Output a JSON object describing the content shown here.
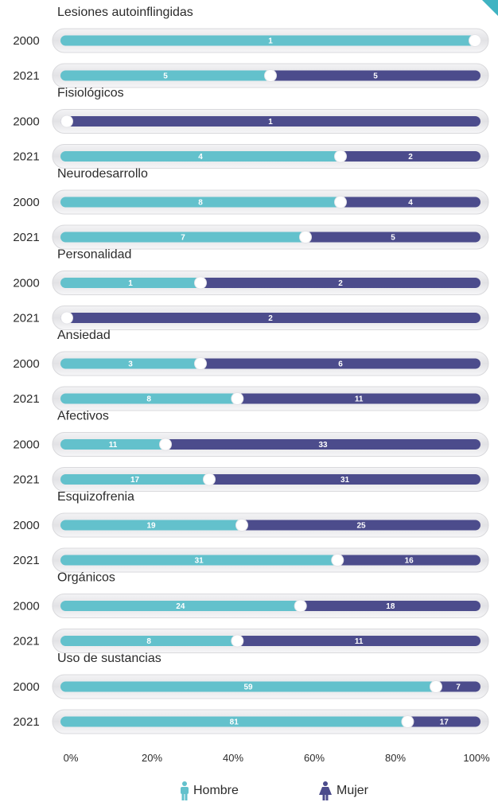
{
  "colors": {
    "hombre": "#63c1cc",
    "mujer": "#4c4c8c",
    "track": "#e6e6e8",
    "knob": "#ffffff"
  },
  "chart_data": {
    "type": "bar",
    "orientation": "horizontal-stacked-percent",
    "xlim": [
      0,
      100
    ],
    "xticks": [
      "0%",
      "20%",
      "40%",
      "60%",
      "80%",
      "100%"
    ],
    "series_names": [
      "Hombre",
      "Mujer"
    ],
    "groups": [
      {
        "title": "Lesiones autoinflingidas",
        "rows": [
          {
            "year": "2000",
            "hombre": 1,
            "mujer": 0
          },
          {
            "year": "2021",
            "hombre": 5,
            "mujer": 5
          }
        ]
      },
      {
        "title": "Fisiológicos",
        "rows": [
          {
            "year": "2000",
            "hombre": 0,
            "mujer": 1
          },
          {
            "year": "2021",
            "hombre": 4,
            "mujer": 2
          }
        ]
      },
      {
        "title": "Neurodesarrollo",
        "rows": [
          {
            "year": "2000",
            "hombre": 8,
            "mujer": 4
          },
          {
            "year": "2021",
            "hombre": 7,
            "mujer": 5
          }
        ]
      },
      {
        "title": "Personalidad",
        "rows": [
          {
            "year": "2000",
            "hombre": 1,
            "mujer": 2
          },
          {
            "year": "2021",
            "hombre": 0,
            "mujer": 2
          }
        ]
      },
      {
        "title": "Ansiedad",
        "rows": [
          {
            "year": "2000",
            "hombre": 3,
            "mujer": 6
          },
          {
            "year": "2021",
            "hombre": 8,
            "mujer": 11
          }
        ]
      },
      {
        "title": "Afectivos",
        "rows": [
          {
            "year": "2000",
            "hombre": 11,
            "mujer": 33
          },
          {
            "year": "2021",
            "hombre": 17,
            "mujer": 31
          }
        ]
      },
      {
        "title": "Esquizofrenia",
        "rows": [
          {
            "year": "2000",
            "hombre": 19,
            "mujer": 25
          },
          {
            "year": "2021",
            "hombre": 31,
            "mujer": 16
          }
        ]
      },
      {
        "title": "Orgánicos",
        "rows": [
          {
            "year": "2000",
            "hombre": 24,
            "mujer": 18
          },
          {
            "year": "2021",
            "hombre": 8,
            "mujer": 11
          }
        ]
      },
      {
        "title": "Uso de sustancias",
        "rows": [
          {
            "year": "2000",
            "hombre": 59,
            "mujer": 7
          },
          {
            "year": "2021",
            "hombre": 81,
            "mujer": 17
          }
        ]
      }
    ]
  },
  "legend": {
    "hombre_label": "Hombre",
    "mujer_label": "Mujer"
  }
}
